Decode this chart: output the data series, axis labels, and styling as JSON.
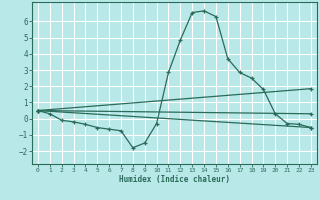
{
  "background_color": "#b8e8e8",
  "grid_color": "#ffffff",
  "line_color": "#2a6b5a",
  "xlabel": "Humidex (Indice chaleur)",
  "xlim": [
    -0.5,
    23.5
  ],
  "ylim": [
    -2.8,
    7.2
  ],
  "yticks": [
    -2,
    -1,
    0,
    1,
    2,
    3,
    4,
    5,
    6
  ],
  "xticks": [
    0,
    1,
    2,
    3,
    4,
    5,
    6,
    7,
    8,
    9,
    10,
    11,
    12,
    13,
    14,
    15,
    16,
    17,
    18,
    19,
    20,
    21,
    22,
    23
  ],
  "lines": [
    {
      "x": [
        0,
        1,
        2,
        3,
        4,
        5,
        6,
        7,
        8,
        9,
        10,
        11,
        12,
        13,
        14,
        15,
        16,
        17,
        18,
        19,
        20,
        21,
        22,
        23
      ],
      "y": [
        0.5,
        0.3,
        -0.1,
        -0.2,
        -0.35,
        -0.55,
        -0.65,
        -0.75,
        -1.8,
        -1.5,
        -0.3,
        2.85,
        4.85,
        6.55,
        6.65,
        6.3,
        3.7,
        2.85,
        2.5,
        1.8,
        0.3,
        -0.3,
        -0.35,
        -0.55
      ]
    },
    {
      "x": [
        0,
        23
      ],
      "y": [
        0.5,
        1.85
      ]
    },
    {
      "x": [
        0,
        23
      ],
      "y": [
        0.5,
        0.3
      ]
    },
    {
      "x": [
        0,
        23
      ],
      "y": [
        0.5,
        -0.55
      ]
    }
  ]
}
